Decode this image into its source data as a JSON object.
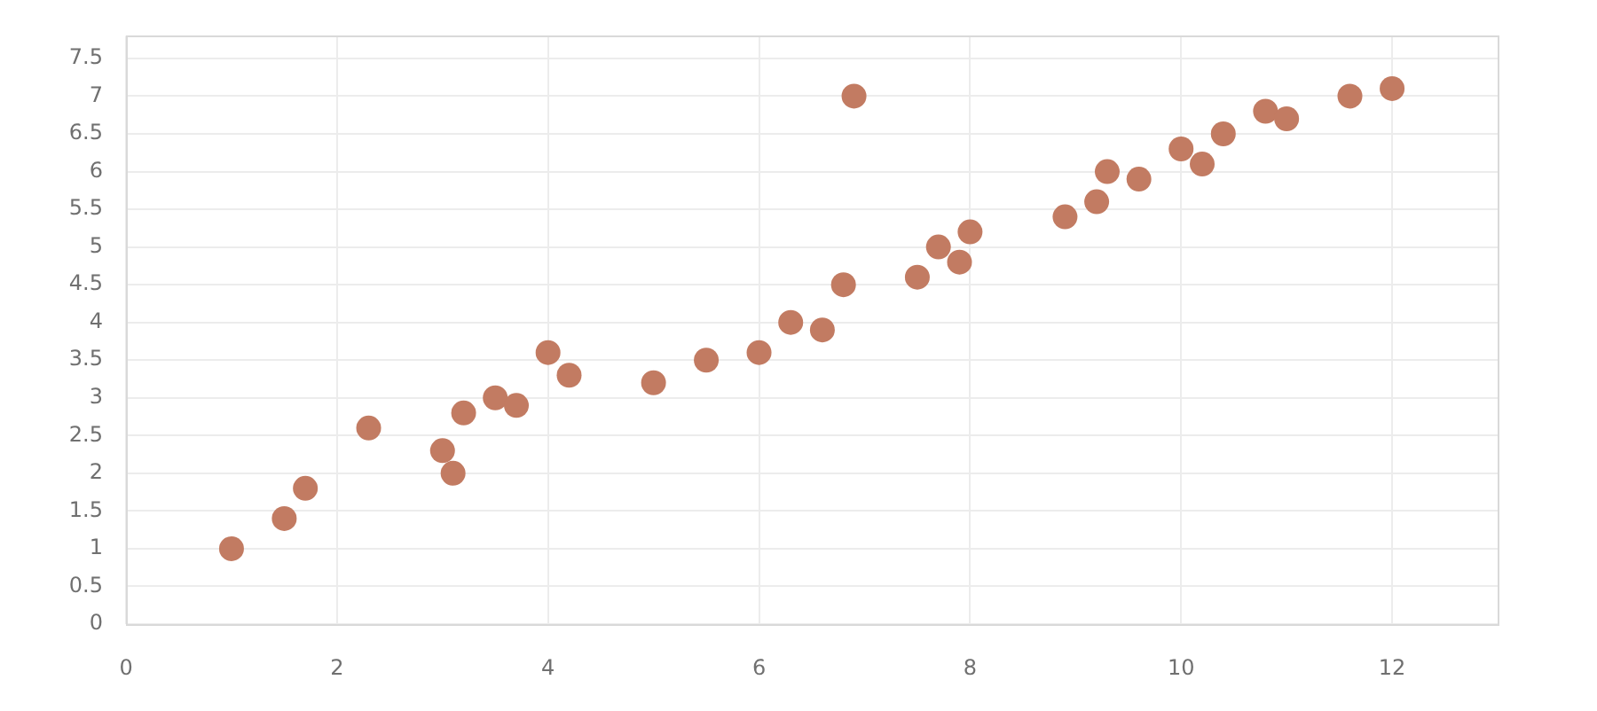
{
  "chart_data": {
    "type": "scatter",
    "x": [
      1,
      1.5,
      1.7,
      2.3,
      3,
      3.1,
      3.2,
      3.5,
      3.7,
      4,
      4.2,
      5,
      5.5,
      6,
      6.3,
      6.6,
      6.8,
      6.9,
      7.5,
      7.7,
      7.9,
      8,
      8.9,
      9.2,
      9.3,
      9.6,
      10,
      10.2,
      10.4,
      10.8,
      11,
      11.6,
      12
    ],
    "values": [
      1,
      1.4,
      1.8,
      2.6,
      2.3,
      2,
      2.8,
      3,
      2.9,
      3.6,
      3.3,
      3.2,
      3.5,
      3.6,
      4,
      3.9,
      4.5,
      7,
      4.6,
      5,
      4.8,
      5.2,
      5.4,
      5.6,
      6,
      5.9,
      6.3,
      6.1,
      6.5,
      6.8,
      6.7,
      7,
      7.1
    ],
    "color": "#c27b62",
    "xlim": [
      0,
      13
    ],
    "xticks": [
      0,
      2,
      4,
      6,
      8,
      10,
      12
    ],
    "ylim": [
      0,
      7.8
    ],
    "yticks": [
      0,
      0.5,
      1,
      1.5,
      2,
      2.5,
      3,
      3.5,
      4,
      4.5,
      5,
      5.5,
      6,
      6.5,
      7,
      7.5
    ],
    "grid": true,
    "marker": "circle"
  }
}
